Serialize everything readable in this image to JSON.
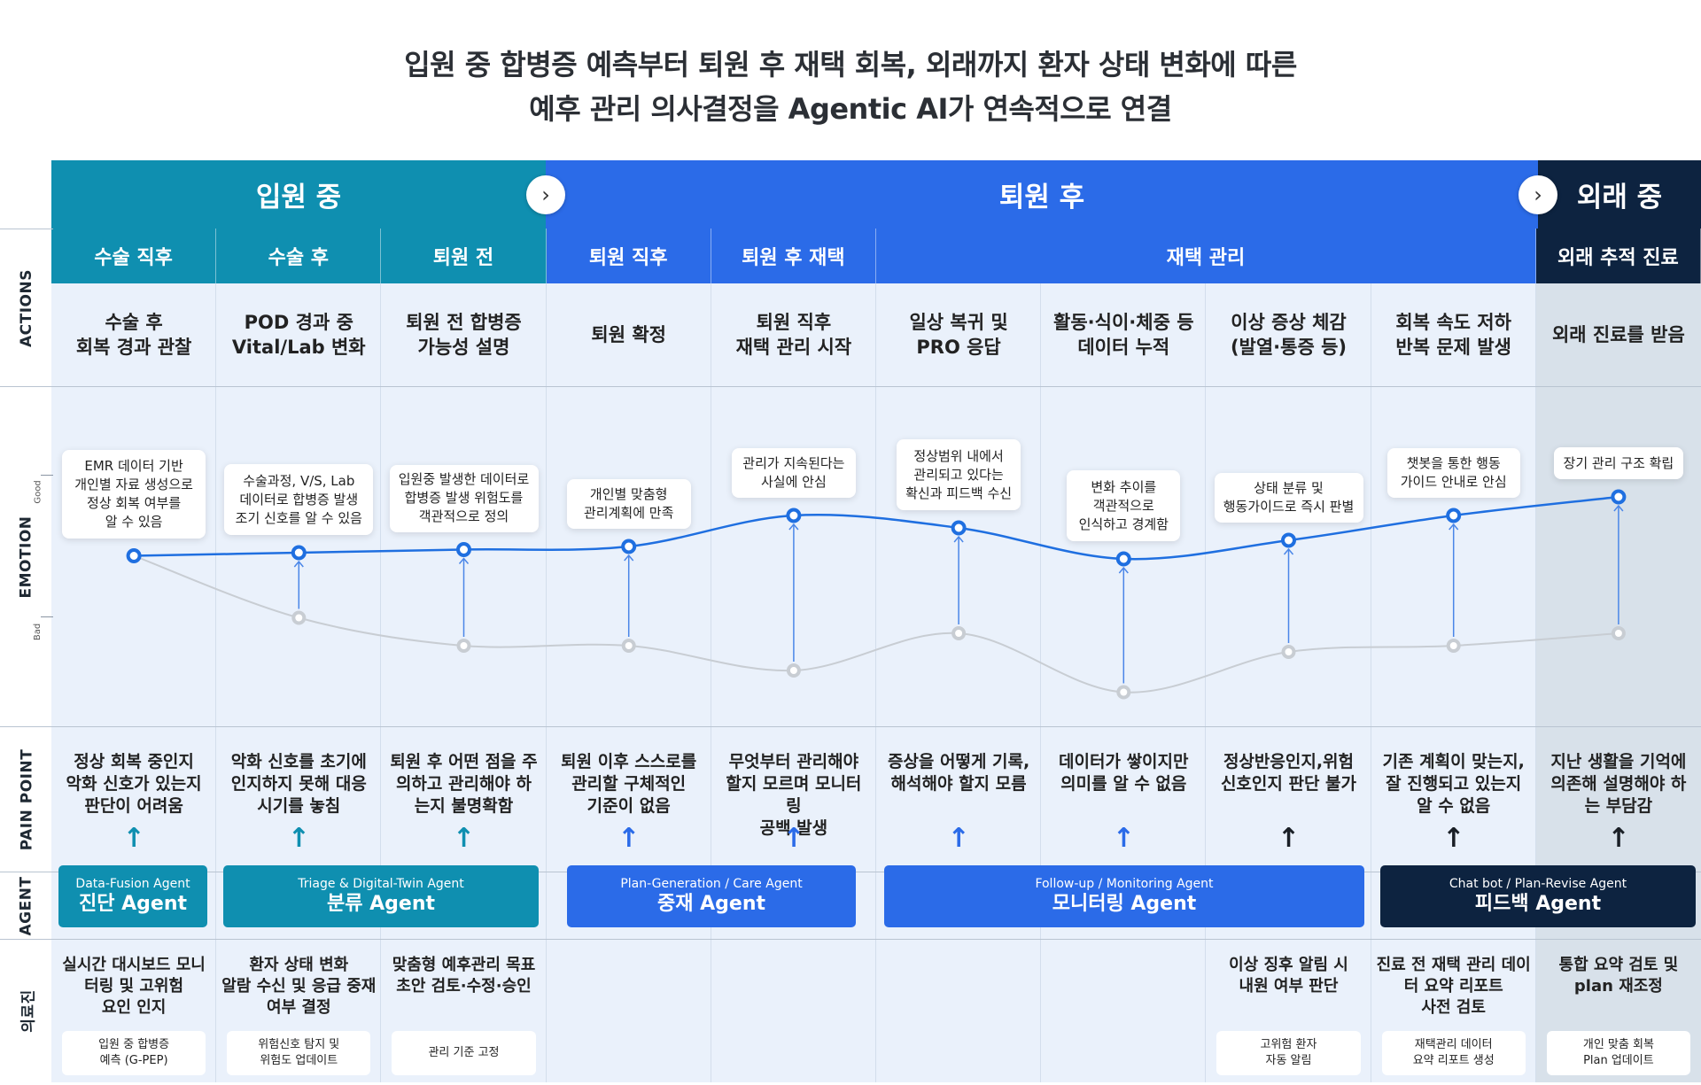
{
  "title": {
    "line1": "입원 중 합병증 예측부터 퇴원 후 재택 회복, 외래까지 환자 상태 변화에 따른",
    "line2": "예후 관리 의사결정을 Agentic AI가 연속적으로 연결"
  },
  "phases": [
    {
      "label": "입원 중",
      "color": "#0f8fb0"
    },
    {
      "label": "퇴원 후",
      "color": "#2b6be8"
    },
    {
      "label": "외래 중",
      "color": "#0d2340"
    }
  ],
  "subphases": [
    "수술 직후",
    "수술 후",
    "퇴원 전",
    "퇴원 직후",
    "퇴원 후 재택",
    "재택 관리",
    "외래 추적 진료"
  ],
  "row_labels": {
    "actions": "ACTIONS",
    "emotion": "EMOTION",
    "good": "Good",
    "bad": "Bad",
    "pain": "PAIN POINT",
    "agent": "AGENT",
    "medical": "의료진"
  },
  "actions": [
    "수술 후\n회복 경과 관찰",
    "POD 경과 중\nVital/Lab 변화",
    "퇴원 전 합병증\n가능성 설명",
    "퇴원 확정",
    "퇴원 직후\n재택 관리 시작",
    "일상 복귀 및\nPRO 응답",
    "활동·식이·체중 등\n데이터 누적",
    "이상 증상 체감\n(발열·통증 등)",
    "회복 속도 저하\n반복 문제 발생",
    "외래 진료를 받음"
  ],
  "emotion_callouts": [
    "EMR 데이터 기반\n개인별 자료 생성으로\n정상 회복 여부를\n알 수 있음",
    "수술과정, V/S, Lab\n데이터로 합병증 발생\n조기 신호를 알 수 있음",
    "입원중 발생한 데이터로\n합병증 발생 위험도를\n객관적으로 정의",
    "개인별 맞춤형\n관리계획에 만족",
    "관리가 지속된다는\n사실에 안심",
    "정상범위 내에서\n관리되고 있다는\n확신과 피드백 수신",
    "변화 추이를\n객관적으로\n인식하고 경계함",
    "상태 분류 및\n행동가이드로 즉시 판별",
    "챗봇을 통한 행동\n가이드 안내로 안심",
    "장기 관리 구조 확립"
  ],
  "chart_data": {
    "type": "line",
    "x": [
      "수술 직후",
      "수술 후",
      "퇴원 전",
      "퇴원 직후",
      "퇴원 후 재택",
      "일상 복귀",
      "데이터 누적",
      "이상 증상",
      "회복 저하",
      "외래"
    ],
    "ylim": [
      0,
      1
    ],
    "series": [
      {
        "values": [
          0.55,
          0.56,
          0.57,
          0.58,
          0.68,
          0.64,
          0.54,
          0.6,
          0.68,
          0.74
        ],
        "color": "#1f6fe0"
      },
      {
        "values": [
          0.55,
          0.35,
          0.26,
          0.26,
          0.18,
          0.3,
          0.11,
          0.24,
          0.26,
          0.3
        ],
        "color": "#c8cdd3"
      }
    ]
  },
  "pain_points": [
    "정상 회복 중인지\n악화 신호가 있는지\n판단이 어려움",
    "악화 신호를 초기에\n인지하지 못해 대응\n시기를 놓침",
    "퇴원 후 어떤 점을 주\n의하고 관리해야 하\n는지 불명확함",
    "퇴원 이후 스스로를\n관리할 구체적인\n기준이 없음",
    "무엇부터 관리해야\n할지 모르며 모니터링\n공백 발생",
    "증상을 어떻게 기록,\n해석해야 할지 모름",
    "데이터가 쌓이지만\n의미를 알 수 없음",
    "정상반응인지,위험\n신호인지 판단 불가",
    "기존 계획이 맞는지,\n잘 진행되고 있는지\n알 수 없음",
    "지난 생활을 기억에\n의존해 설명해야 하\n는 부담감"
  ],
  "agents": [
    {
      "en": "Data-Fusion Agent",
      "ko": "진단 Agent",
      "color": "#0f8fb0"
    },
    {
      "en": "Triage & Digital-Twin Agent",
      "ko": "분류 Agent",
      "color": "#0f8fb0"
    },
    {
      "en": "Plan-Generation / Care Agent",
      "ko": "중재 Agent",
      "color": "#2b6be8"
    },
    {
      "en": "Follow-up / Monitoring Agent",
      "ko": "모니터링 Agent",
      "color": "#2b6be8"
    },
    {
      "en": "Chat bot / Plan-Revise Agent",
      "ko": "피드백 Agent",
      "color": "#0d2340"
    }
  ],
  "medical": [
    {
      "text": "실시간 대시보드 모니\n터링 및 고위험\n요인 인지",
      "box": "입원 중 합병증\n예측 (G-PEP)"
    },
    {
      "text": "환자 상태 변화\n알람 수신 및 응급 중재\n여부 결정",
      "box": "위험신호 탐지 및\n위험도 업데이트"
    },
    {
      "text": "맞춤형 예후관리 목표\n초안 검토·수정·승인",
      "box": "관리 기준 고정"
    },
    {
      "text": "",
      "box": ""
    },
    {
      "text": "",
      "box": ""
    },
    {
      "text": "",
      "box": ""
    },
    {
      "text": "",
      "box": ""
    },
    {
      "text": "이상 징후 알림 시\n내원 여부 판단",
      "box": "고위험 환자\n자동 알림"
    },
    {
      "text": "진료 전 재택 관리 데이\n터 요약 리포트\n사전 검토",
      "box": "재택관리 데이터\n요약 리포트 생성"
    },
    {
      "text": "통합 요약 검토 및\nplan 재조정",
      "box": "개인 맞춤 회복\nPlan 업데이트"
    }
  ]
}
